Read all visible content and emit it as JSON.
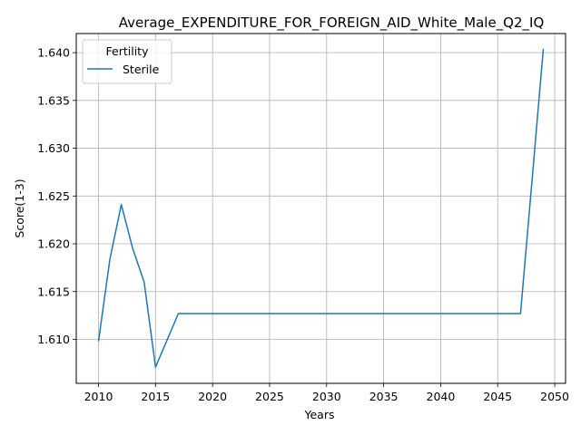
{
  "chart_data": {
    "type": "line",
    "title": "Average_EXPENDITURE_FOR_FOREIGN_AID_White_Male_Q2_IQ",
    "xlabel": "Years",
    "ylabel": "Score(1-3)",
    "xlim": [
      2008.05,
      2050.95
    ],
    "ylim": [
      1.6054,
      1.642
    ],
    "x_ticks": [
      2010,
      2015,
      2020,
      2025,
      2030,
      2035,
      2040,
      2045,
      2050
    ],
    "y_ticks": [
      1.61,
      1.615,
      1.62,
      1.625,
      1.63,
      1.635,
      1.64
    ],
    "grid": true,
    "legend": {
      "title": "Fertility",
      "placement": "top-left"
    },
    "x": [
      2010,
      2011,
      2012,
      2013,
      2014,
      2015,
      2016,
      2017,
      2018,
      2019,
      2020,
      2021,
      2022,
      2023,
      2024,
      2025,
      2026,
      2027,
      2028,
      2029,
      2030,
      2031,
      2032,
      2033,
      2034,
      2035,
      2036,
      2037,
      2038,
      2039,
      2040,
      2041,
      2042,
      2043,
      2044,
      2045,
      2046,
      2047,
      2048,
      2049
    ],
    "series": [
      {
        "name": "Sterile",
        "color": "#1f77b4",
        "values": [
          1.6098,
          1.6184,
          1.6241,
          1.6195,
          1.616,
          1.6071,
          1.6099,
          1.6127,
          1.6127,
          1.6127,
          1.6127,
          1.6127,
          1.6127,
          1.6127,
          1.6127,
          1.6127,
          1.6127,
          1.6127,
          1.6127,
          1.6127,
          1.6127,
          1.6127,
          1.6127,
          1.6127,
          1.6127,
          1.6127,
          1.6127,
          1.6127,
          1.6127,
          1.6127,
          1.6127,
          1.6127,
          1.6127,
          1.6127,
          1.6127,
          1.6127,
          1.6127,
          1.6127,
          1.6265,
          1.6404
        ]
      }
    ]
  }
}
